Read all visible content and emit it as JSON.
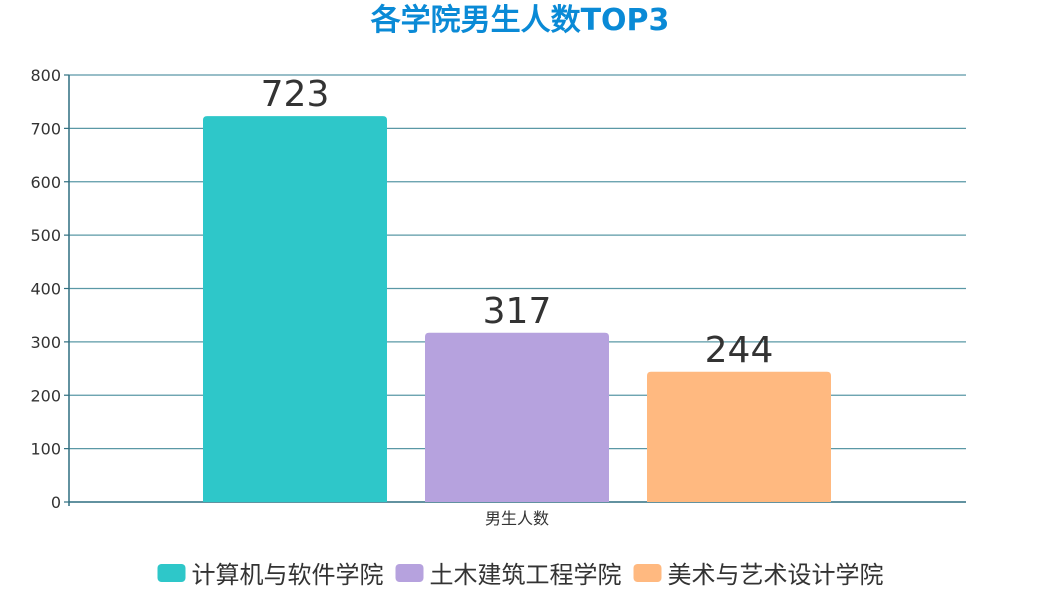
{
  "chart_data": {
    "type": "bar",
    "title": "各学院男生人数TOP3",
    "categories": [
      "男生人数"
    ],
    "series": [
      {
        "name": "计算机与软件学院",
        "values": [
          723
        ],
        "color": "#2ec7c9"
      },
      {
        "name": "土木建筑工程学院",
        "values": [
          317
        ],
        "color": "#b6a2de"
      },
      {
        "name": "美术与艺术设计学院",
        "values": [
          244
        ],
        "color": "#ffb980"
      }
    ],
    "xlabel": "",
    "ylabel": "",
    "ylim": [
      0,
      800
    ],
    "yticks": [
      0,
      100,
      200,
      300,
      400,
      500,
      600,
      700,
      800
    ],
    "grid": true,
    "legend_position": "bottom",
    "data_labels": true
  },
  "colors": {
    "title": "#0a8ad6",
    "axis": "#2f6f80",
    "grid": "#5a98a6"
  }
}
